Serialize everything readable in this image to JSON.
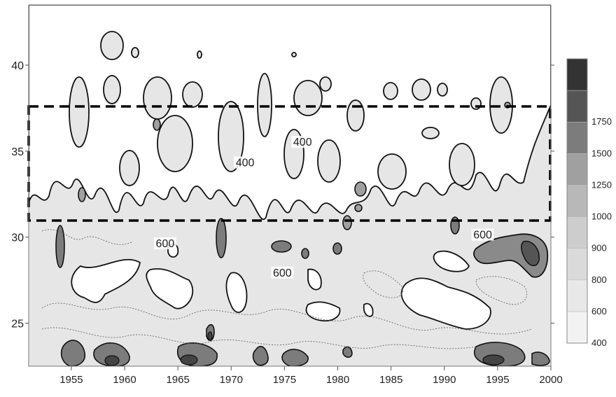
{
  "chart_data": {
    "type": "heatmap",
    "title": "",
    "xlabel": "",
    "ylabel": "",
    "xlim": [
      1951,
      2000
    ],
    "ylim": [
      22.5,
      43.5
    ],
    "x_ticks": [
      1955,
      1960,
      1965,
      1970,
      1975,
      1980,
      1985,
      1990,
      1995,
      2000
    ],
    "y_ticks": [
      25,
      30,
      35,
      40
    ],
    "colorbar": {
      "levels": [
        400,
        600,
        800,
        900,
        1000,
        1250,
        1500,
        1750
      ],
      "tick_labels": [
        "400",
        "600",
        "800",
        "900",
        "1000",
        "1250",
        "1500",
        "1750"
      ],
      "colors": [
        "#f2f2f2",
        "#e8e8e8",
        "#dadada",
        "#cdcdcd",
        "#b8b8b8",
        "#a0a0a0",
        "#7c7c7c",
        "#555555",
        "#333333"
      ]
    },
    "contour_labels": [
      {
        "text": "400",
        "x": 1976.7,
        "y": 35.4
      },
      {
        "text": "400",
        "x": 1971.3,
        "y": 34.2
      },
      {
        "text": "600",
        "x": 1963.8,
        "y": 29.5
      },
      {
        "text": "600",
        "x": 1974.8,
        "y": 27.8
      },
      {
        "text": "600",
        "x": 1993.6,
        "y": 30.0
      }
    ],
    "highlight_box": {
      "x": [
        1951,
        2000
      ],
      "y": [
        31.2,
        38.1
      ],
      "style": "dashed"
    },
    "grid": false,
    "legend": "colorbar-right"
  }
}
